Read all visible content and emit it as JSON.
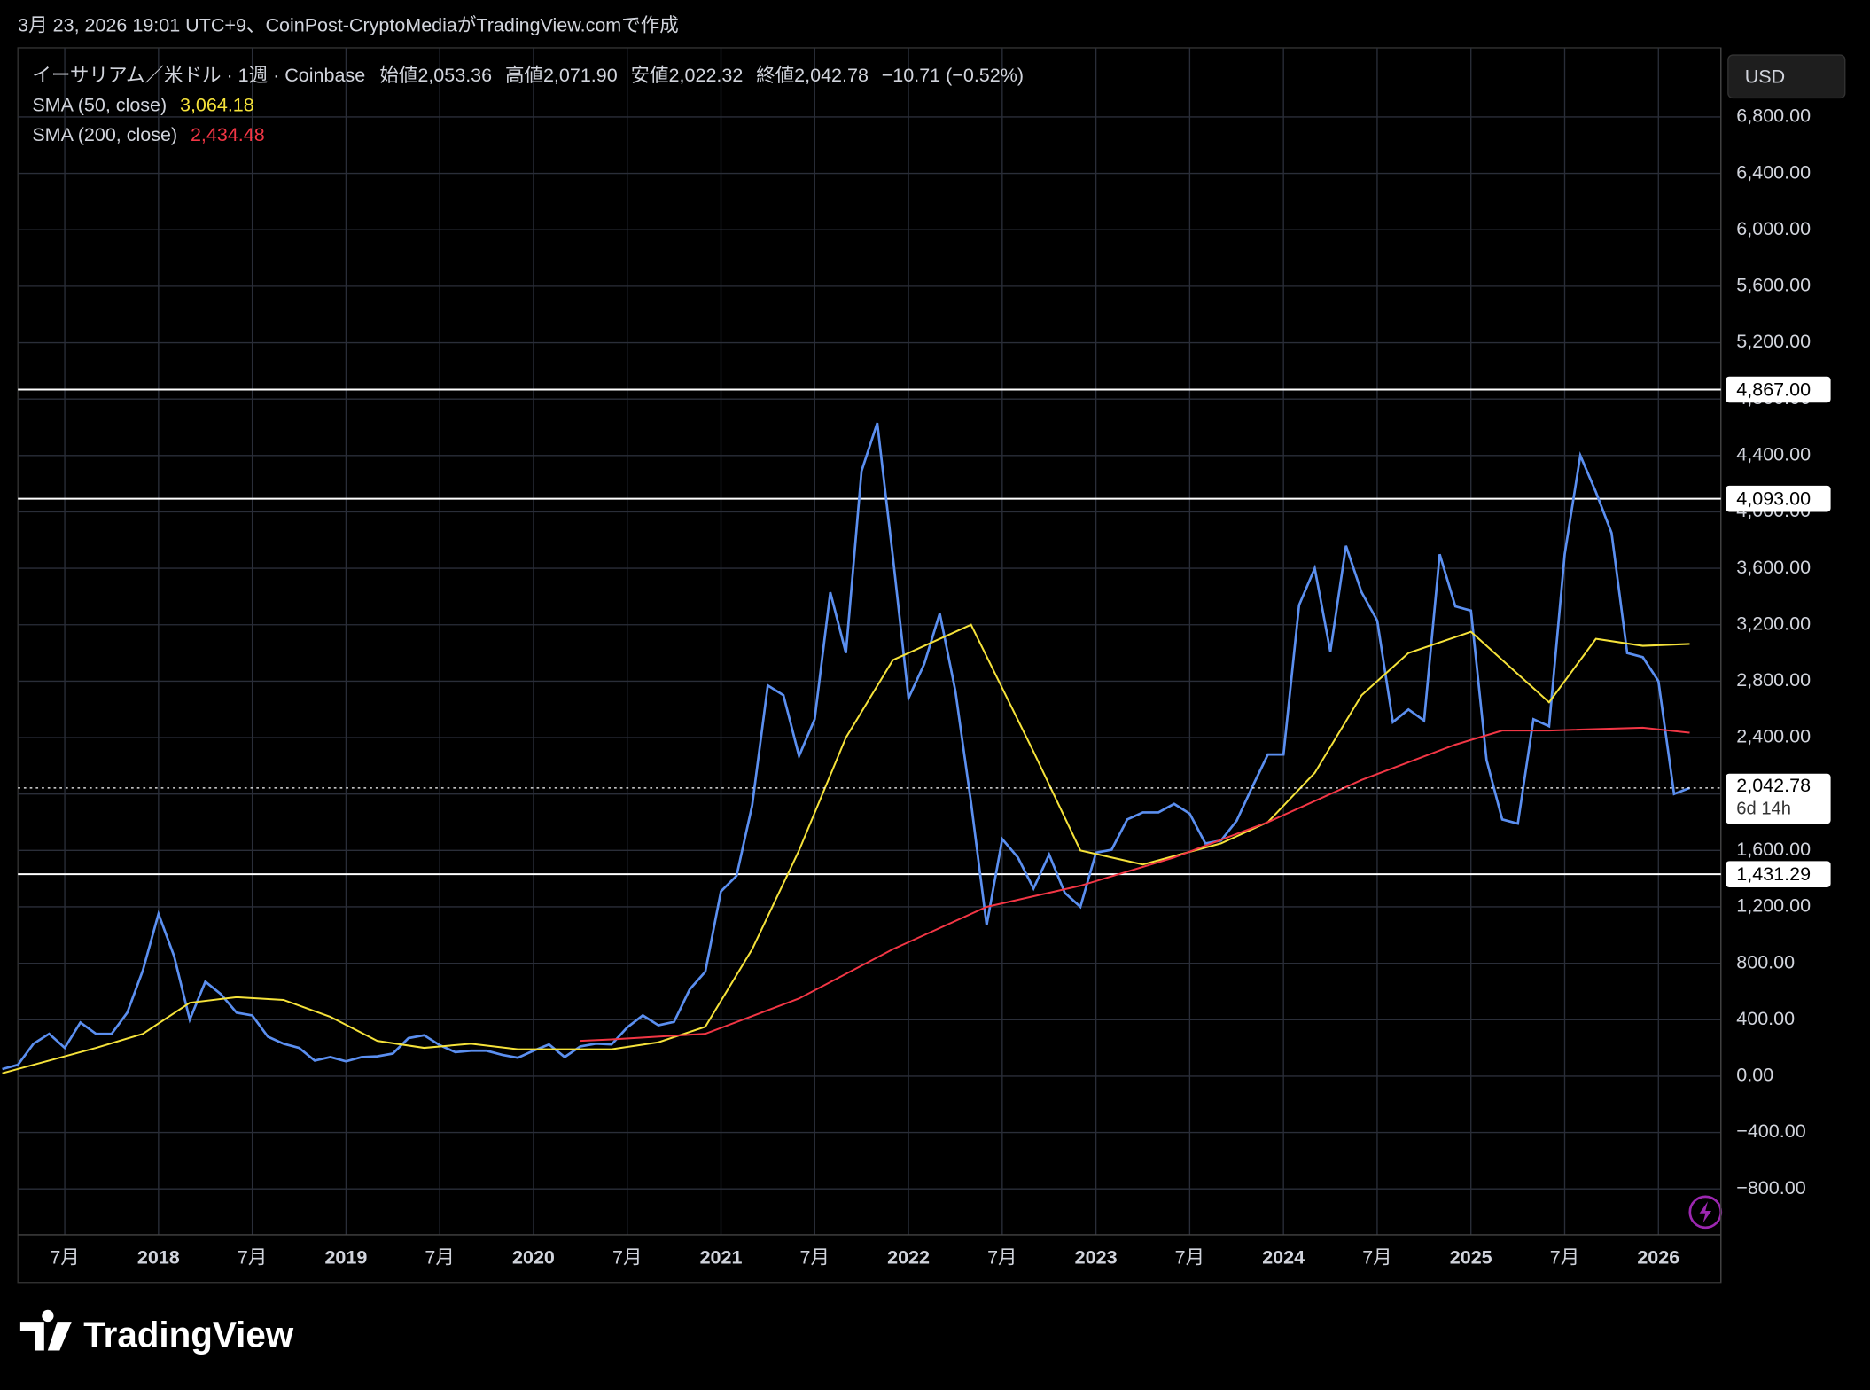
{
  "chart_data": {
    "type": "line",
    "title": "3月 23, 2026 19:01 UTC+9、CoinPost-CryptoMediaがTradingView.comで作成",
    "info_line": [
      "始値2,053.36",
      "高値2,071.90",
      "安値2,022.32",
      "終値2,042.78",
      "−10.71 (−0.52%)"
    ],
    "currency": "USD",
    "brand": "TradingView",
    "xlim": [
      "2017-04",
      "2026-05"
    ],
    "xticks": [
      {
        "value": "2017-07",
        "label": "7月"
      },
      {
        "value": "2018-01",
        "label": "2018"
      },
      {
        "value": "2018-07",
        "label": "7月"
      },
      {
        "value": "2019-01",
        "label": "2019"
      },
      {
        "value": "2019-07",
        "label": "7月"
      },
      {
        "value": "2020-01",
        "label": "2020"
      },
      {
        "value": "2020-07",
        "label": "7月"
      },
      {
        "value": "2021-01",
        "label": "2021"
      },
      {
        "value": "2021-07",
        "label": "7月"
      },
      {
        "value": "2022-01",
        "label": "2022"
      },
      {
        "value": "2022-07",
        "label": "7月"
      },
      {
        "value": "2023-01",
        "label": "2023"
      },
      {
        "value": "2023-07",
        "label": "7月"
      },
      {
        "value": "2024-01",
        "label": "2024"
      },
      {
        "value": "2024-07",
        "label": "7月"
      },
      {
        "value": "2025-01",
        "label": "2025"
      },
      {
        "value": "2025-07",
        "label": "7月"
      },
      {
        "value": "2026-01",
        "label": "2026"
      }
    ],
    "ylim": [
      -1125,
      7290
    ],
    "yticks": [
      {
        "value": -800,
        "label": "−800.00"
      },
      {
        "value": -400,
        "label": "−400.00"
      },
      {
        "value": 0,
        "label": "0.00"
      },
      {
        "value": 400,
        "label": "400.00"
      },
      {
        "value": 800,
        "label": "800.00"
      },
      {
        "value": 1200,
        "label": "1,200.00"
      },
      {
        "value": 1600,
        "label": "1,600.00"
      },
      {
        "value": 2000,
        "label": "2,000.00"
      },
      {
        "value": 2400,
        "label": "2,400.00"
      },
      {
        "value": 2800,
        "label": "2,800.00"
      },
      {
        "value": 3200,
        "label": "3,200.00"
      },
      {
        "value": 3600,
        "label": "3,600.00"
      },
      {
        "value": 4000,
        "label": "4,000.00"
      },
      {
        "value": 4400,
        "label": "4,400.00"
      },
      {
        "value": 4800,
        "label": "4,800.00"
      },
      {
        "value": 5200,
        "label": "5,200.00"
      },
      {
        "value": 5600,
        "label": "5,600.00"
      },
      {
        "value": 6000,
        "label": "6,000.00"
      },
      {
        "value": 6400,
        "label": "6,400.00"
      },
      {
        "value": 6800,
        "label": "6,800.00"
      }
    ],
    "grid": true,
    "levels": [
      {
        "value": 4867,
        "label": "4,867.00"
      },
      {
        "value": 4093,
        "label": "4,093.00"
      },
      {
        "value": 1431.29,
        "label": "1,431.29"
      }
    ],
    "last_price": {
      "value": 2042.78,
      "label": "2,042.78",
      "countdown": "6d 14h"
    },
    "series": [
      {
        "name": "イーサリアム／米ドル · 1週 · Coinbase",
        "color": "#5b8ff0",
        "x": [
          "2017-03",
          "2017-04",
          "2017-05",
          "2017-06",
          "2017-07",
          "2017-08",
          "2017-09",
          "2017-10",
          "2017-11",
          "2017-12",
          "2018-01",
          "2018-02",
          "2018-03",
          "2018-04",
          "2018-05",
          "2018-06",
          "2018-07",
          "2018-08",
          "2018-09",
          "2018-10",
          "2018-11",
          "2018-12",
          "2019-01",
          "2019-02",
          "2019-03",
          "2019-04",
          "2019-05",
          "2019-06",
          "2019-07",
          "2019-08",
          "2019-09",
          "2019-10",
          "2019-11",
          "2019-12",
          "2020-01",
          "2020-02",
          "2020-03",
          "2020-04",
          "2020-05",
          "2020-06",
          "2020-07",
          "2020-08",
          "2020-09",
          "2020-10",
          "2020-11",
          "2020-12",
          "2021-01",
          "2021-02",
          "2021-03",
          "2021-04",
          "2021-05",
          "2021-06",
          "2021-07",
          "2021-08",
          "2021-09",
          "2021-10",
          "2021-11",
          "2021-12",
          "2022-01",
          "2022-02",
          "2022-03",
          "2022-04",
          "2022-05",
          "2022-06",
          "2022-07",
          "2022-08",
          "2022-09",
          "2022-10",
          "2022-11",
          "2022-12",
          "2023-01",
          "2023-02",
          "2023-03",
          "2023-04",
          "2023-05",
          "2023-06",
          "2023-07",
          "2023-08",
          "2023-09",
          "2023-10",
          "2023-11",
          "2023-12",
          "2024-01",
          "2024-02",
          "2024-03",
          "2024-04",
          "2024-05",
          "2024-06",
          "2024-07",
          "2024-08",
          "2024-09",
          "2024-10",
          "2024-11",
          "2024-12",
          "2025-01",
          "2025-02",
          "2025-03",
          "2025-04",
          "2025-05",
          "2025-06",
          "2025-07",
          "2025-08",
          "2025-09",
          "2025-10",
          "2025-11",
          "2025-12",
          "2026-01",
          "2026-02",
          "2026-03"
        ],
        "values": [
          50,
          80,
          230,
          300,
          200,
          380,
          300,
          300,
          450,
          750,
          1150,
          850,
          400,
          670,
          580,
          450,
          430,
          280,
          230,
          200,
          110,
          135,
          105,
          135,
          140,
          160,
          270,
          290,
          220,
          170,
          180,
          180,
          150,
          130,
          180,
          225,
          135,
          210,
          230,
          225,
          345,
          430,
          360,
          385,
          615,
          740,
          1310,
          1420,
          1920,
          2770,
          2700,
          2270,
          2530,
          3430,
          3000,
          4290,
          4630,
          3680,
          2680,
          2920,
          3280,
          2730,
          1940,
          1070,
          1680,
          1550,
          1330,
          1570,
          1300,
          1200,
          1585,
          1605,
          1820,
          1870,
          1870,
          1930,
          1860,
          1650,
          1670,
          1810,
          2050,
          2280,
          2280,
          3340,
          3600,
          3010,
          3760,
          3430,
          3230,
          2510,
          2600,
          2520,
          3700,
          3330,
          3300,
          2240,
          1820,
          1790,
          2530,
          2480,
          3700,
          4400,
          4140,
          3850,
          3000,
          2970,
          2800,
          2000,
          2042.78
        ]
      },
      {
        "name": "SMA (50, close)",
        "color": "#f5e23a",
        "value_label": "3,064.18",
        "x": [
          "2017-03",
          "2017-09",
          "2017-12",
          "2018-03",
          "2018-06",
          "2018-09",
          "2018-12",
          "2019-03",
          "2019-06",
          "2019-09",
          "2019-12",
          "2020-03",
          "2020-06",
          "2020-09",
          "2020-12",
          "2021-03",
          "2021-06",
          "2021-09",
          "2021-12",
          "2022-05",
          "2022-09",
          "2022-12",
          "2023-04",
          "2023-09",
          "2023-12",
          "2024-03",
          "2024-06",
          "2024-09",
          "2025-01",
          "2025-06",
          "2025-09",
          "2025-12",
          "2026-03"
        ],
        "values": [
          20,
          200,
          300,
          520,
          560,
          540,
          420,
          250,
          200,
          230,
          190,
          190,
          190,
          240,
          350,
          900,
          1600,
          2400,
          2950,
          3200,
          2300,
          1600,
          1500,
          1650,
          1800,
          2150,
          2700,
          3000,
          3150,
          2650,
          3100,
          3050,
          3064.18
        ]
      },
      {
        "name": "SMA (200, close)",
        "color": "#f23645",
        "value_label": "2,434.48",
        "x": [
          "2020-04",
          "2020-06",
          "2020-12",
          "2021-06",
          "2021-12",
          "2022-06",
          "2022-12",
          "2023-06",
          "2023-12",
          "2024-06",
          "2024-12",
          "2025-03",
          "2025-06",
          "2025-12",
          "2026-03"
        ],
        "values": [
          250,
          260,
          300,
          550,
          900,
          1200,
          1350,
          1550,
          1800,
          2100,
          2350,
          2450,
          2450,
          2470,
          2434.48
        ]
      }
    ]
  }
}
